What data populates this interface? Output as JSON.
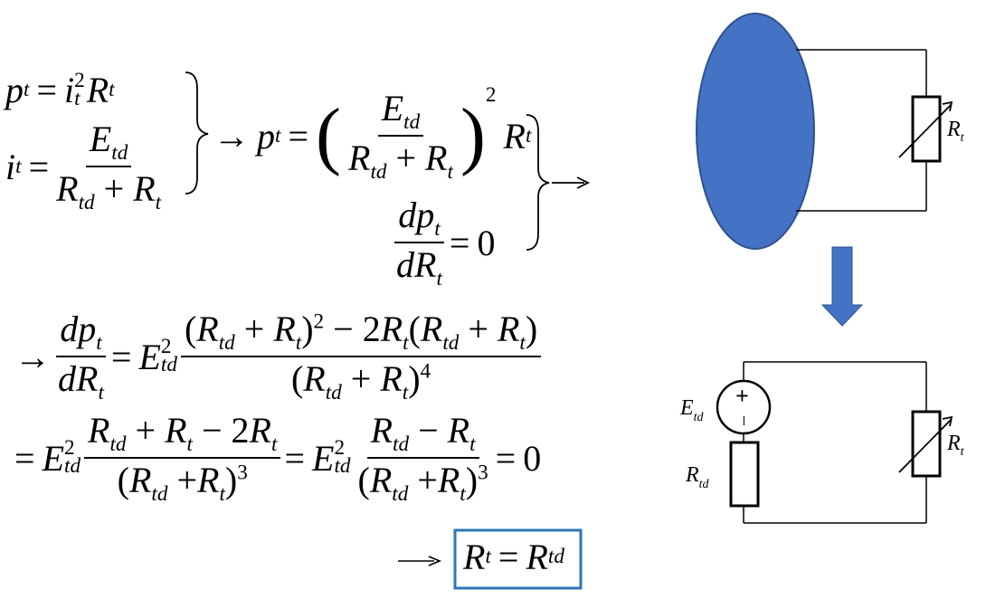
{
  "equations": {
    "p_t": "p",
    "eq": "=",
    "i_t": "i",
    "two": "2",
    "R": "R",
    "E": "E",
    "d": "d",
    "sub_t": "t",
    "sub_td": "td",
    "plus": "+",
    "minus": "−",
    "arrow": "→",
    "zero": "0",
    "four": "4",
    "three": "3",
    "lp": "(",
    "rp": ")"
  },
  "circuit_labels": {
    "rt_top": "R",
    "rt_bottom": "R",
    "etd": "E",
    "rtd": "R",
    "sub_t": "t",
    "sub_td": "td",
    "plus_sign": "+",
    "minus_sign": "−"
  },
  "colors": {
    "ellipse": "#4472C4",
    "arrow": "#4472C4",
    "result_box": "#2E75B6"
  }
}
